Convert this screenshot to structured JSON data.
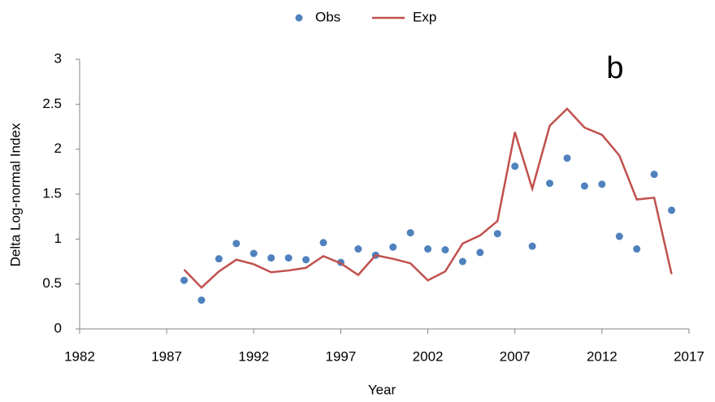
{
  "chart_data": {
    "type": "line",
    "x_label": "Year",
    "y_label": "Delta Log-normal Index",
    "annotation": "b",
    "x": [
      1988,
      1989,
      1990,
      1991,
      1992,
      1993,
      1994,
      1995,
      1996,
      1997,
      1998,
      1999,
      2000,
      2001,
      2002,
      2003,
      2004,
      2005,
      2006,
      2007,
      2008,
      2009,
      2010,
      2011,
      2012,
      2013,
      2014,
      2015,
      2016
    ],
    "series": [
      {
        "name": "Obs",
        "color": "#4f81bd",
        "kind": "scatter",
        "values": [
          0.54,
          0.32,
          0.78,
          0.95,
          0.84,
          0.79,
          0.79,
          0.77,
          0.96,
          0.74,
          0.89,
          0.82,
          0.91,
          1.07,
          0.89,
          0.88,
          0.75,
          0.85,
          1.06,
          1.81,
          0.92,
          1.62,
          1.9,
          1.59,
          1.61,
          1.03,
          0.89,
          1.72,
          1.32
        ]
      },
      {
        "name": "Exp",
        "color": "#c0504d",
        "kind": "line",
        "values": [
          0.66,
          0.46,
          0.64,
          0.77,
          0.72,
          0.63,
          0.65,
          0.68,
          0.81,
          0.73,
          0.6,
          0.82,
          0.78,
          0.73,
          0.54,
          0.64,
          0.95,
          1.04,
          1.2,
          2.19,
          1.56,
          2.26,
          2.45,
          2.24,
          2.16,
          1.93,
          1.44,
          1.46,
          0.61
        ]
      }
    ],
    "xlim": [
      1982,
      2017
    ],
    "xticks": [
      1982,
      1987,
      1992,
      1997,
      2002,
      2007,
      2012,
      2017
    ],
    "ylim": [
      0,
      3
    ],
    "yticks": [
      0,
      0.5,
      1,
      1.5,
      2,
      2.5,
      3
    ],
    "legend": "top",
    "grid": false
  }
}
